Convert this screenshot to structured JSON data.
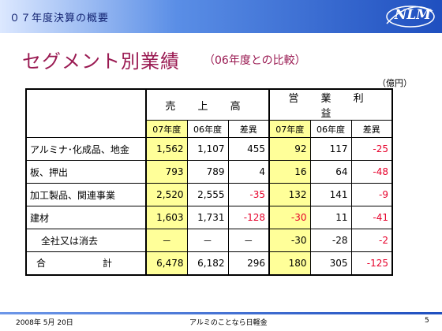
{
  "header": {
    "title": "０７年度決算の概要",
    "logo": "NLM"
  },
  "slide": {
    "title": "セグメント別業績",
    "subtitle": "（06年度との比較）",
    "unit": "（億円）"
  },
  "table": {
    "groups": [
      "売 上 高",
      "営 業 利 益"
    ],
    "subheaders": [
      "07年度",
      "06年度",
      "差異",
      "07年度",
      "06年度",
      "差異"
    ],
    "rows": [
      {
        "label": "アルミナ･化成品、地金",
        "sales_07": "1,562",
        "sales_06": "1,107",
        "sales_diff": "455",
        "op_07": "92",
        "op_06": "117",
        "op_diff": "-25"
      },
      {
        "label": "板、押出",
        "sales_07": "793",
        "sales_06": "789",
        "sales_diff": "4",
        "op_07": "16",
        "op_06": "64",
        "op_diff": "-48"
      },
      {
        "label": "加工製品、関連事業",
        "sales_07": "2,520",
        "sales_06": "2,555",
        "sales_diff": "-35",
        "op_07": "132",
        "op_06": "141",
        "op_diff": "-9"
      },
      {
        "label": "建材",
        "sales_07": "1,603",
        "sales_06": "1,731",
        "sales_diff": "-128",
        "op_07": "-30",
        "op_06": "11",
        "op_diff": "-41"
      },
      {
        "label": "全社又は消去",
        "sales_07": "－",
        "sales_06": "－",
        "sales_diff": "－",
        "op_07": "-30",
        "op_06": "-28",
        "op_diff": "-2"
      },
      {
        "label": "合　計",
        "sales_07": "6,478",
        "sales_06": "6,182",
        "sales_diff": "296",
        "op_07": "180",
        "op_06": "305",
        "op_diff": "-125"
      }
    ],
    "colors": {
      "highlight": "#ffff99",
      "negative": "#e6002a"
    }
  },
  "footer": {
    "date": "2008年 5月 20日",
    "organization": "アルミのことなら日軽金",
    "page": "5"
  }
}
